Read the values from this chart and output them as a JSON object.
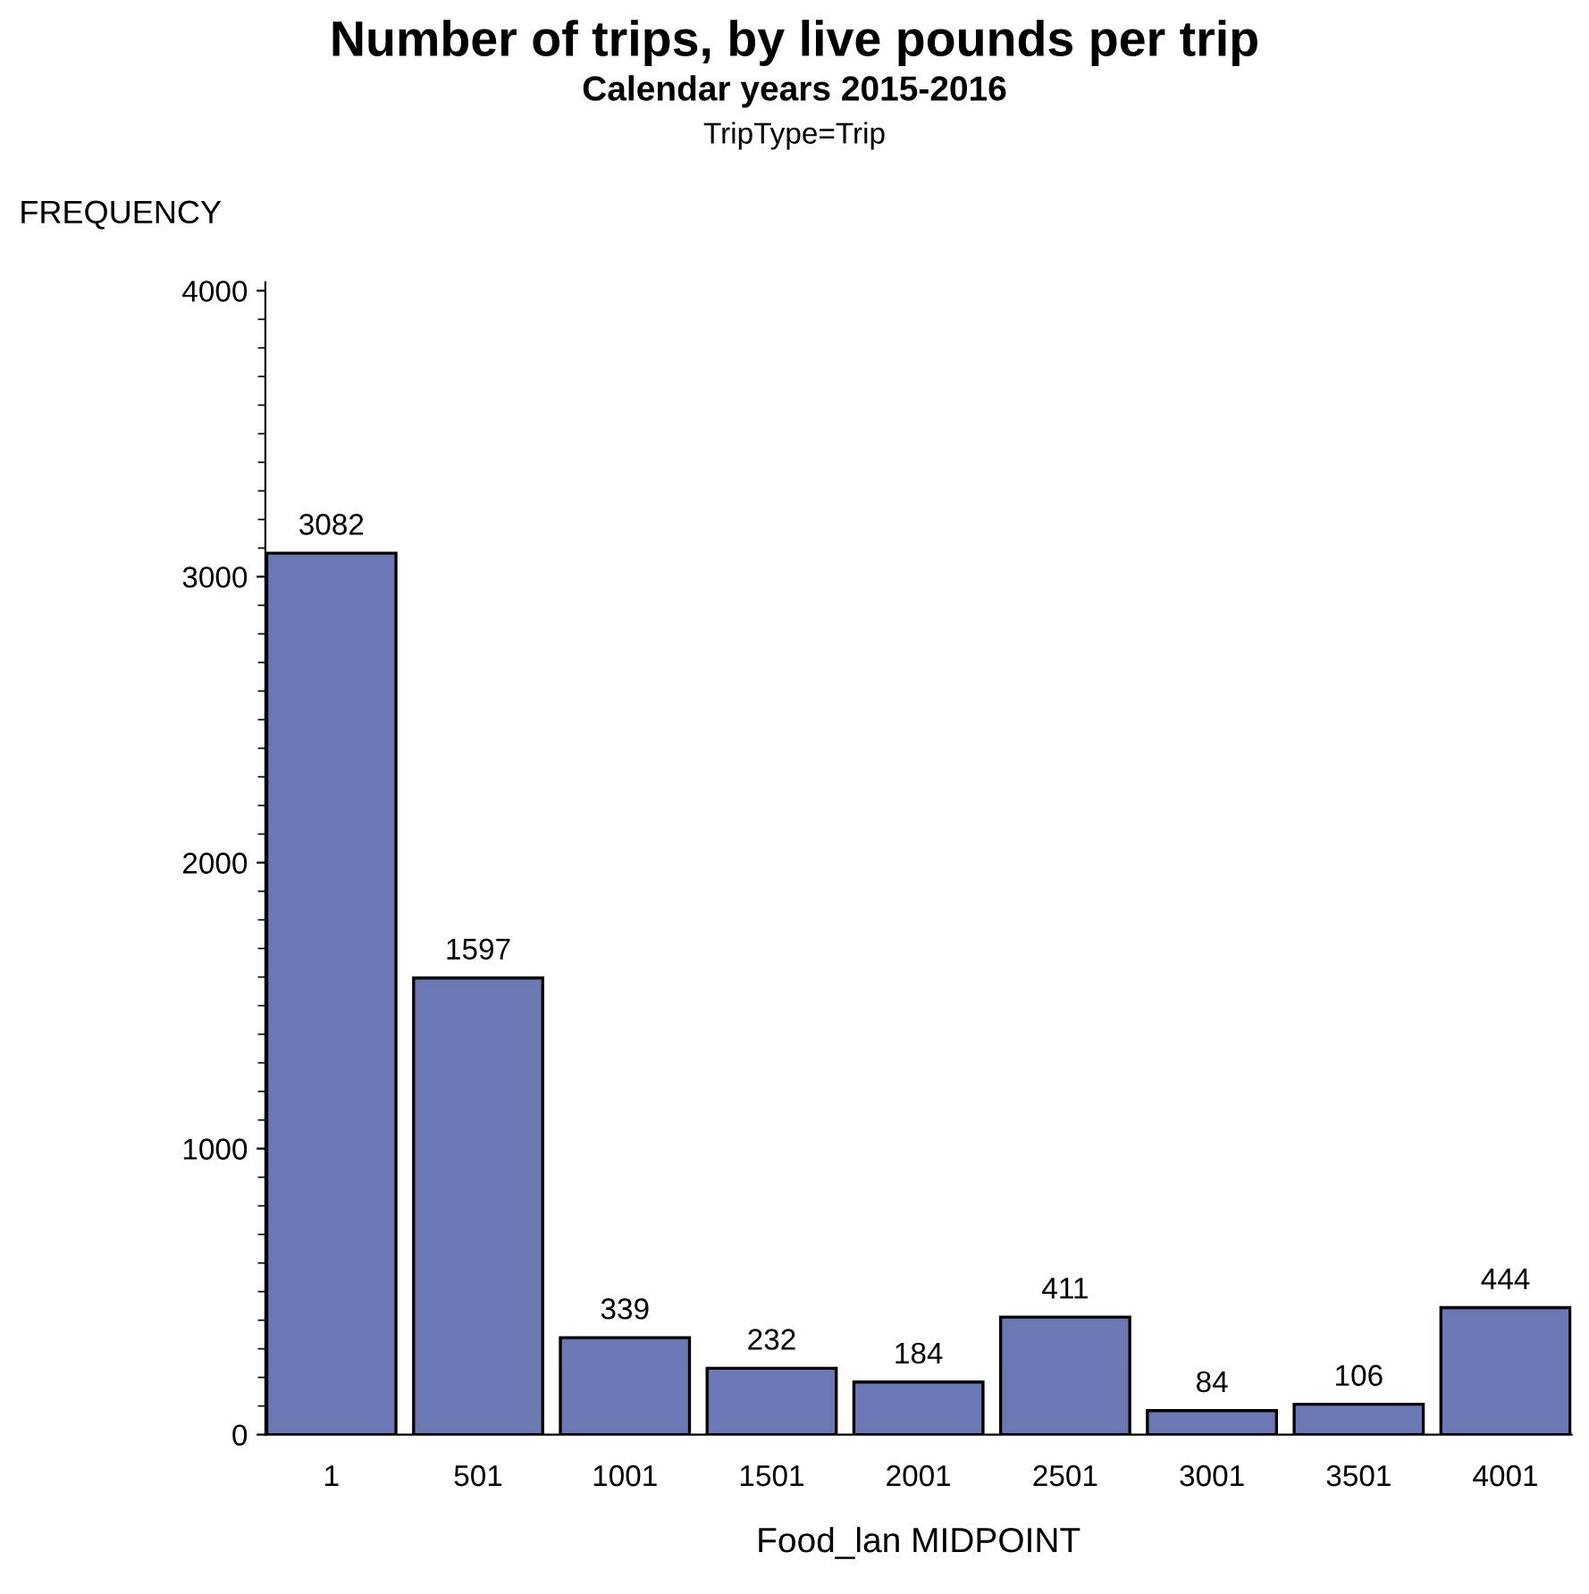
{
  "chart_data": {
    "type": "bar",
    "title": "Number of trips, by live pounds per trip",
    "subtitle": "Calendar years 2015-2016",
    "annotations": [
      "TripType=Trip"
    ],
    "xlabel": "Food_lan MIDPOINT",
    "ylabel": "FREQUENCY",
    "categories": [
      "1",
      "501",
      "1001",
      "1501",
      "2001",
      "2501",
      "3001",
      "3501",
      "4001"
    ],
    "values": [
      3082,
      1597,
      339,
      232,
      184,
      411,
      84,
      106,
      444
    ],
    "color": "#6b78b4",
    "ylim": [
      0,
      4030
    ],
    "yticks": [
      0,
      1000,
      2000,
      3000,
      4000
    ],
    "grid": false,
    "legend": false,
    "data_labels": true
  }
}
